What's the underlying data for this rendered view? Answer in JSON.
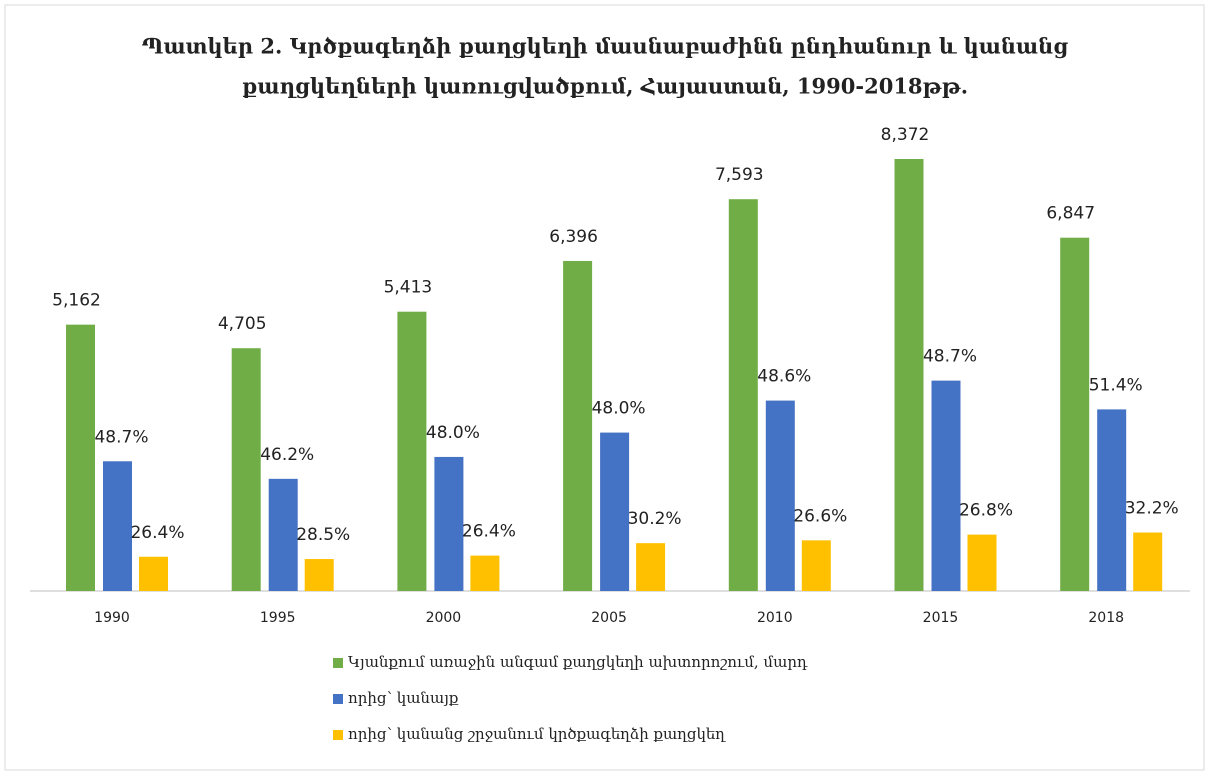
{
  "chart_data": {
    "type": "bar",
    "title": [
      "Պատկեր 2. Կրծքագեղձի քաղցկեղի մասնաբաժինն ընդհանուր և կանանց",
      "քաղցկեղների կառուցվածքում, Հայաստան, 1990-2018թթ."
    ],
    "categories": [
      "1990",
      "1995",
      "2000",
      "2005",
      "2010",
      "2015",
      "2018"
    ],
    "series": [
      {
        "name": "Կյանքում առաջին անգամ քաղցկեղի ախտորոշում, մարդ",
        "color": "#70ad47",
        "values": [
          5162,
          4705,
          5413,
          6396,
          7593,
          8372,
          6847
        ],
        "value_labels": [
          "5,162",
          "4,705",
          "5,413",
          "6,396",
          "7,593",
          "8,372",
          "6,847"
        ]
      },
      {
        "name": "որից՝ կանայք",
        "color": "#4472c4",
        "values": [
          48.7,
          46.2,
          48.0,
          48.0,
          48.6,
          48.7,
          51.4
        ],
        "value_labels": [
          "48.7%",
          "46.2%",
          "48.0%",
          "48.0%",
          "48.6%",
          "48.7%",
          "51.4%"
        ]
      },
      {
        "name": "որից՝ կանանց շրջանում կրծքագեղձի քաղցկեղ",
        "color": "#ffc000",
        "values": [
          26.4,
          28.5,
          26.4,
          30.2,
          26.6,
          26.8,
          32.2
        ],
        "value_labels": [
          "26.4%",
          "28.5%",
          "26.4%",
          "30.2%",
          "26.6%",
          "26.8%",
          "32.2%"
        ]
      }
    ]
  }
}
